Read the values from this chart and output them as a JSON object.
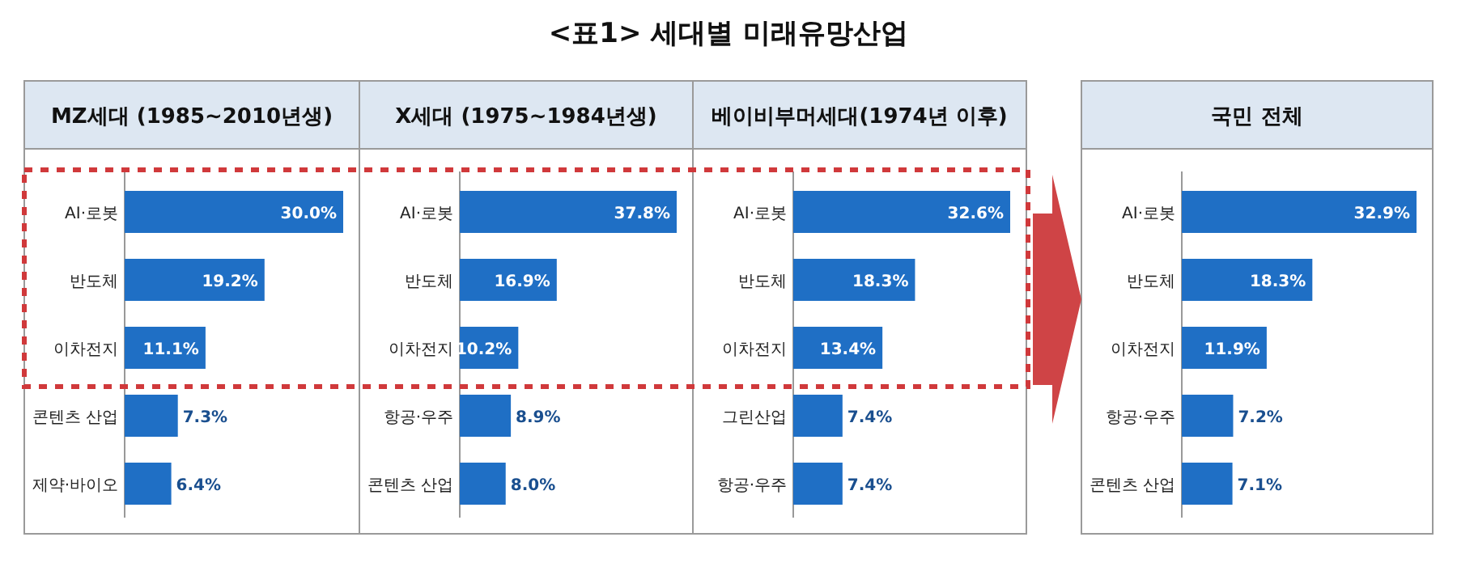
{
  "chart_data": [
    {
      "type": "bar",
      "orientation": "horizontal",
      "title": "MZ세대 (1985~2010년생)",
      "annotations": [
        "<표1> 세대별 미래유망산업"
      ],
      "categories": [
        "AI·로봇",
        "반도체",
        "이차전지",
        "콘텐츠 산업",
        "제약·바이오"
      ],
      "values": [
        30.0,
        19.2,
        11.1,
        7.3,
        6.4
      ],
      "color": "#1f6fc5",
      "value_labels": [
        "30.0%",
        "19.2%",
        "11.1%",
        "7.3%",
        "6.4%"
      ]
    },
    {
      "type": "bar",
      "orientation": "horizontal",
      "title": "X세대 (1975~1984년생)",
      "categories": [
        "AI·로봇",
        "반도체",
        "이차전지",
        "항공·우주",
        "콘텐츠 산업"
      ],
      "values": [
        37.8,
        16.9,
        10.2,
        8.9,
        8.0
      ],
      "color": "#1f6fc5",
      "value_labels": [
        "37.8%",
        "16.9%",
        "10.2%",
        "8.9%",
        "8.0%"
      ]
    },
    {
      "type": "bar",
      "orientation": "horizontal",
      "title": "베이비부머세대(1974년 이후)",
      "categories": [
        "AI·로봇",
        "반도체",
        "이차전지",
        "그린산업",
        "항공·우주"
      ],
      "values": [
        32.6,
        18.3,
        13.4,
        7.4,
        7.4
      ],
      "color": "#1f6fc5",
      "value_labels": [
        "32.6%",
        "18.3%",
        "13.4%",
        "7.4%",
        "7.4%"
      ]
    },
    {
      "type": "bar",
      "orientation": "horizontal",
      "title": "국민 전체",
      "categories": [
        "AI·로봇",
        "반도체",
        "이차전지",
        "항공·우주",
        "콘텐츠 산업"
      ],
      "values": [
        32.9,
        18.3,
        11.9,
        7.2,
        7.1
      ],
      "color": "#1f6fc5",
      "value_labels": [
        "32.9%",
        "18.3%",
        "11.9%",
        "7.2%",
        "7.1%"
      ]
    }
  ]
}
